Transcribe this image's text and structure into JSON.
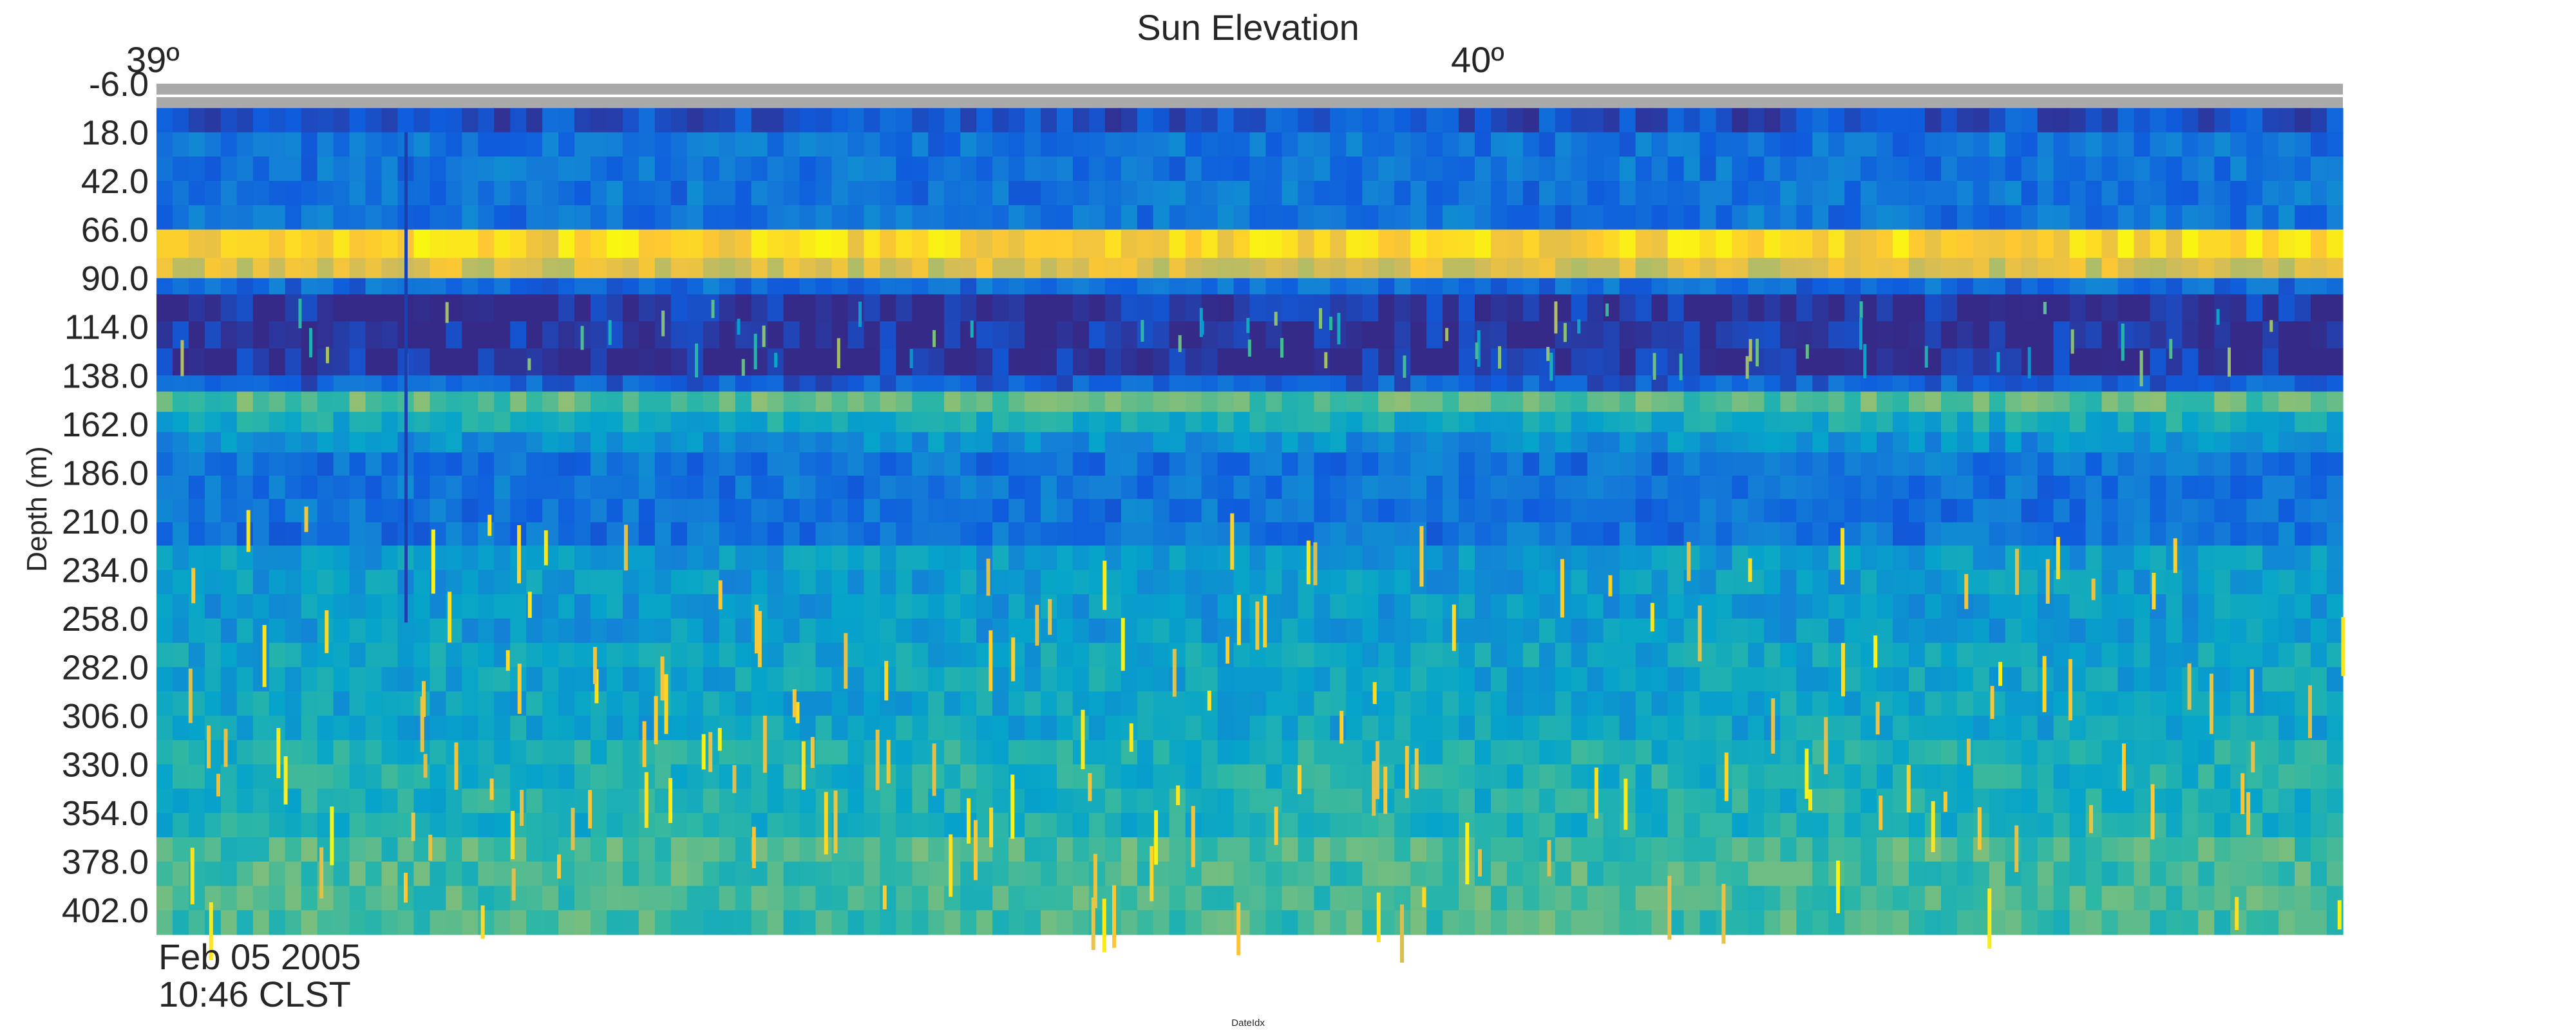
{
  "chart_data": {
    "type": "heatmap",
    "title": "Sun Elevation",
    "sun_elevation_labels": [
      "39º",
      "40º"
    ],
    "ylabel": "Depth (m)",
    "xlabel": "DateIdx",
    "y_tick_labels": [
      "-6.0",
      "18.0",
      "42.0",
      "66.0",
      "90.0",
      "114.0",
      "138.0",
      "162.0",
      "186.0",
      "210.0",
      "234.0",
      "258.0",
      "282.0",
      "306.0",
      "330.0",
      "354.0",
      "378.0",
      "402.0"
    ],
    "ylim": [
      -6.0,
      414.0
    ],
    "x_start_label": {
      "date": "Feb 05 2005",
      "time": "10:46 CLST"
    },
    "colormap": [
      "#352a87",
      "#0f5cdd",
      "#1481d6",
      "#06a4ca",
      "#2eb7a4",
      "#87bf77",
      "#d1bb59",
      "#fec832",
      "#f9fb0e"
    ],
    "missing_color": "#a9a9a9",
    "depth_bands": [
      {
        "from": -6.0,
        "to": 6.0,
        "level": null
      },
      {
        "from": 6.0,
        "to": 18.0,
        "level": 0.1
      },
      {
        "from": 18.0,
        "to": 66.0,
        "level": 0.2
      },
      {
        "from": 66.0,
        "to": 80.0,
        "level": 0.9
      },
      {
        "from": 80.0,
        "to": 90.0,
        "level": 0.78
      },
      {
        "from": 90.0,
        "to": 98.0,
        "level": 0.18
      },
      {
        "from": 98.0,
        "to": 138.0,
        "level": 0.02
      },
      {
        "from": 138.0,
        "to": 146.0,
        "level": 0.14
      },
      {
        "from": 146.0,
        "to": 156.0,
        "level": 0.55
      },
      {
        "from": 156.0,
        "to": 166.0,
        "level": 0.42
      },
      {
        "from": 166.0,
        "to": 176.0,
        "level": 0.3
      },
      {
        "from": 176.0,
        "to": 222.0,
        "level": 0.2
      },
      {
        "from": 222.0,
        "to": 270.0,
        "level": 0.34
      },
      {
        "from": 270.0,
        "to": 318.0,
        "level": 0.38
      },
      {
        "from": 318.0,
        "to": 366.0,
        "level": 0.44
      },
      {
        "from": 366.0,
        "to": 414.0,
        "level": 0.52
      }
    ]
  }
}
